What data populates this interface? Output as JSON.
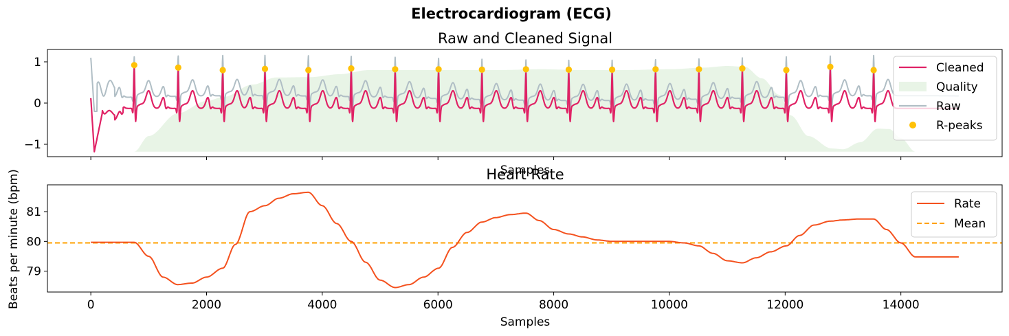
{
  "suptitle": "Electrocardiogram (ECG)",
  "chart_data": [
    {
      "type": "line",
      "title": "Raw and Cleaned Signal",
      "xlabel": "Samples",
      "ylabel": "",
      "xlim": [
        -750,
        15750
      ],
      "ylim": [
        -1.3,
        1.3
      ],
      "x_ticks": [
        0,
        2000,
        4000,
        6000,
        8000,
        10000,
        12000,
        14000
      ],
      "x_tick_labels_visible": false,
      "y_ticks": [
        -1,
        0,
        1
      ],
      "y_tick_labels": [
        "−1",
        "0",
        "1"
      ],
      "legend": {
        "position": "upper-right",
        "entries": [
          "Cleaned",
          "Quality",
          "Raw",
          "R-peaks"
        ]
      },
      "colors": {
        "cleaned": "#e02265",
        "raw": "#b0bec5",
        "quality": "#e8f4e6",
        "rpeaks": "#ffc107"
      },
      "r_peaks": {
        "x": [
          750,
          1510,
          2280,
          3010,
          3760,
          4500,
          5260,
          6010,
          6760,
          7520,
          8260,
          9010,
          9760,
          10510,
          11260,
          12020,
          12780,
          13530
        ],
        "y": [
          0.92,
          0.86,
          0.8,
          0.83,
          0.8,
          0.84,
          0.82,
          0.82,
          0.81,
          0.82,
          0.81,
          0.81,
          0.82,
          0.82,
          0.84,
          0.8,
          0.88,
          0.8
        ]
      },
      "signal": {
        "start": 0,
        "end": 15000,
        "samples_per_beat": 750
      },
      "quality": {
        "x": [
          750,
          1000,
          1500,
          2000,
          2300,
          2800,
          3200,
          3800,
          4300,
          4800,
          5500,
          6200,
          7000,
          7800,
          8500,
          9200,
          10000,
          10600,
          11000,
          11300,
          11600,
          11900,
          12100,
          12400,
          12800,
          13000,
          13300,
          13600,
          13800,
          14000,
          14250
        ],
        "y": [
          -1.18,
          -0.8,
          -0.25,
          0.05,
          0.15,
          0.45,
          0.62,
          0.63,
          0.7,
          0.8,
          0.8,
          0.8,
          0.8,
          0.82,
          0.8,
          0.8,
          0.82,
          0.86,
          0.9,
          0.88,
          0.6,
          0.2,
          -0.3,
          -0.8,
          -1.1,
          -1.12,
          -0.95,
          -0.62,
          -0.63,
          -0.85,
          -1.18
        ],
        "baseline": -1.18
      }
    },
    {
      "type": "line",
      "title": "Heart Rate",
      "xlabel": "Samples",
      "ylabel": "Beats per minute (bpm)",
      "xlim": [
        -750,
        15750
      ],
      "ylim": [
        78.3,
        81.9
      ],
      "x_ticks": [
        0,
        2000,
        4000,
        6000,
        8000,
        10000,
        12000,
        14000
      ],
      "x_tick_labels": [
        "0",
        "2000",
        "4000",
        "6000",
        "8000",
        "10000",
        "12000",
        "14000"
      ],
      "y_ticks": [
        79,
        80,
        81
      ],
      "y_tick_labels": [
        "79",
        "80",
        "81"
      ],
      "legend": {
        "position": "upper-right",
        "entries": [
          "Rate",
          "Mean"
        ]
      },
      "colors": {
        "rate": "#f4511e",
        "mean": "#ffa000"
      },
      "mean": 79.95,
      "rate": {
        "x": [
          0,
          750,
          1000,
          1250,
          1500,
          1750,
          2000,
          2280,
          2500,
          2750,
          3010,
          3250,
          3500,
          3760,
          4000,
          4250,
          4500,
          4750,
          5000,
          5260,
          5500,
          5750,
          6010,
          6250,
          6500,
          6760,
          7000,
          7250,
          7520,
          7750,
          8000,
          8260,
          8500,
          8750,
          9010,
          9250,
          9500,
          9760,
          10000,
          10250,
          10510,
          10750,
          11000,
          11260,
          11500,
          11750,
          12020,
          12250,
          12500,
          12780,
          13000,
          13250,
          13530,
          13750,
          14000,
          14250,
          15000
        ],
        "y": [
          79.97,
          79.97,
          79.5,
          78.8,
          78.55,
          78.6,
          78.8,
          79.1,
          79.9,
          81.0,
          81.2,
          81.45,
          81.6,
          81.65,
          81.2,
          80.6,
          80.0,
          79.3,
          78.7,
          78.45,
          78.55,
          78.8,
          79.1,
          79.8,
          80.3,
          80.65,
          80.8,
          80.9,
          80.95,
          80.7,
          80.4,
          80.25,
          80.15,
          80.05,
          80.0,
          80.0,
          80.0,
          80.0,
          80.0,
          79.95,
          79.85,
          79.6,
          79.35,
          79.28,
          79.45,
          79.65,
          79.85,
          80.2,
          80.55,
          80.68,
          80.72,
          80.75,
          80.75,
          80.4,
          79.95,
          79.48,
          79.48
        ]
      }
    }
  ]
}
